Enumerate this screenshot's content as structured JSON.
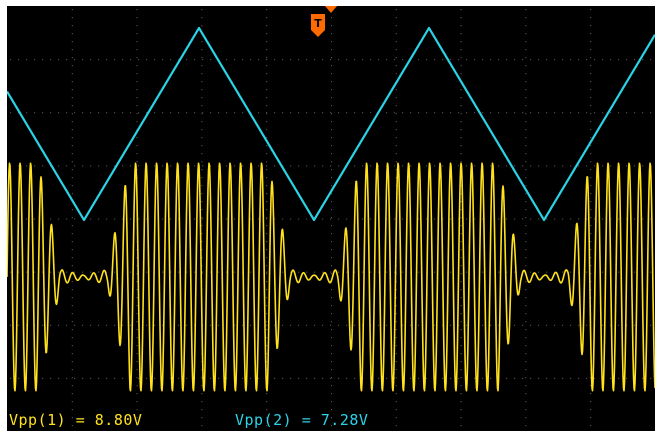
{
  "trigger": {
    "marker_label": "T",
    "marker_color": "#ff6a00",
    "icon": "trigger-marker-icon"
  },
  "channels": [
    {
      "id": 1,
      "color": "#ffe11c",
      "waveform": "burst sine (modulated)"
    },
    {
      "id": 2,
      "color": "#2ad4e6",
      "waveform": "triangle"
    }
  ],
  "colors": {
    "background": "#000000",
    "grid": "#5a5a5a",
    "frame": "#ffffff"
  },
  "grid": {
    "divisions_x": 10,
    "divisions_y": 8,
    "style": "dotted"
  },
  "measurements": {
    "ch1_vpp": {
      "label": "Vpp(1)",
      "equals": "=",
      "value": "8.80V",
      "color": "#ffe11c"
    },
    "ch2_vpp": {
      "label": "Vpp(2)",
      "equals": "=",
      "value": "7.28V",
      "color": "#2ad4e6"
    }
  }
}
